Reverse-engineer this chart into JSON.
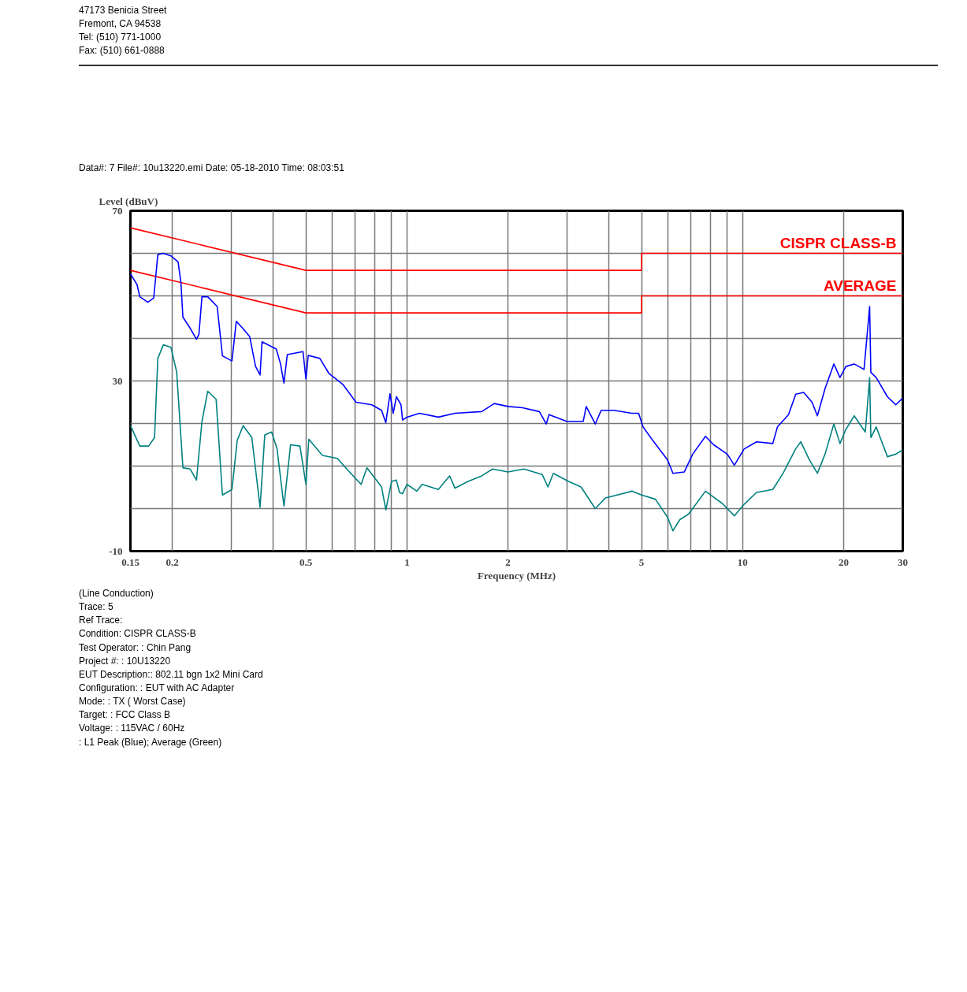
{
  "chart_data": {
    "type": "line",
    "subtitle": "Data#: 7     File#: 10u13220.emi     Date: 05-18-2010  Time: 08:03:51",
    "xlabel": "Frequency (MHz)",
    "ylabel": "Level (dBuV)",
    "log": "x",
    "grid": true,
    "line_style": "solid",
    "xlim": [
      0.15,
      30
    ],
    "ylim": [
      -10,
      70
    ],
    "xticks": [
      0.15,
      0.2,
      {
        "value": 0.3,
        "label": null
      },
      {
        "value": 0.4,
        "label": null
      },
      0.5,
      {
        "value": 0.6,
        "label": null
      },
      {
        "value": 0.7,
        "label": null
      },
      {
        "value": 0.8,
        "label": null
      },
      {
        "value": 0.9,
        "label": null
      },
      1,
      2,
      {
        "value": 3,
        "label": null
      },
      {
        "value": 4,
        "label": null
      },
      5,
      {
        "value": 6,
        "label": null
      },
      {
        "value": 7,
        "label": null
      },
      {
        "value": 8,
        "label": null
      },
      {
        "value": 9,
        "label": null
      },
      10,
      20,
      30
    ],
    "yticks": [
      -10,
      {
        "value": 0,
        "label": null
      },
      {
        "value": 10,
        "label": null
      },
      {
        "value": 20,
        "label": null
      },
      30,
      {
        "value": 40,
        "label": null
      },
      {
        "value": 50,
        "label": null
      },
      {
        "value": 60,
        "label": null
      },
      70
    ],
    "series": [
      {
        "name": "CISPR CLASS-B",
        "color": "#ff0000",
        "x": [
          0.15,
          0.5,
          5,
          5,
          30
        ],
        "values": [
          66,
          56,
          56,
          60,
          60
        ]
      },
      {
        "name": "AVERAGE",
        "color": "#ff0000",
        "x": [
          0.15,
          0.5,
          5,
          5,
          30
        ],
        "values": [
          56,
          46,
          46,
          50,
          50
        ]
      },
      {
        "color": "#0000ff",
        "x": [
          0.15,
          0.157,
          0.16,
          0.169,
          0.176,
          0.181,
          0.188,
          0.198,
          0.208,
          0.212,
          0.215,
          0.226,
          0.236,
          0.24,
          0.245,
          0.255,
          0.272,
          0.282,
          0.301,
          0.31,
          0.324,
          0.34,
          0.354,
          0.365,
          0.37,
          0.408,
          0.42,
          0.43,
          0.44,
          0.49,
          0.5,
          0.508,
          0.55,
          0.585,
          0.644,
          0.705,
          0.785,
          0.84,
          0.865,
          0.89,
          0.91,
          0.93,
          0.96,
          0.97,
          1.0,
          1.09,
          1.24,
          1.39,
          1.67,
          1.82,
          2.0,
          2.21,
          2.48,
          2.6,
          2.65,
          2.99,
          3.35,
          3.42,
          3.64,
          3.79,
          4.13,
          4.68,
          4.9,
          5.05,
          5.4,
          5.97,
          6.2,
          6.7,
          7.1,
          7.75,
          8.2,
          9.0,
          9.45,
          10.1,
          11.0,
          12.3,
          12.7,
          13.7,
          14.4,
          15.2,
          16.1,
          16.7,
          17.6,
          18.7,
          19.5,
          20.3,
          21.5,
          23.0,
          23.9,
          24.1,
          25.0,
          27.0,
          28.6,
          30
        ],
        "values": [
          55.2,
          52.6,
          49.8,
          48.5,
          49.5,
          59.7,
          60,
          59.4,
          58,
          53.3,
          45,
          42.4,
          39.8,
          41,
          49.8,
          49.8,
          47.5,
          35.9,
          34.7,
          44,
          42.4,
          40.4,
          33.4,
          31.4,
          39.2,
          37.5,
          34,
          29.5,
          36.2,
          36.9,
          30.5,
          36,
          35.3,
          31.8,
          29.2,
          25,
          24.4,
          23.1,
          20.2,
          27,
          22.4,
          26.3,
          24.4,
          20.8,
          21.5,
          22.4,
          21.5,
          22.4,
          22.8,
          24.7,
          24,
          23.7,
          22.8,
          19.9,
          22.1,
          20.5,
          20.5,
          24,
          19.9,
          23.1,
          23.1,
          22.4,
          22.4,
          19.2,
          16,
          11.5,
          8.3,
          8.6,
          12.8,
          17,
          15,
          12.8,
          10.2,
          14,
          15.7,
          15.3,
          19.2,
          22.1,
          26.9,
          27.3,
          25,
          21.8,
          28.2,
          34,
          30.8,
          33.4,
          34,
          32.7,
          47.5,
          32,
          30.8,
          26.3,
          24.4,
          26
        ]
      },
      {
        "color": "#008080",
        "x": [
          0.15,
          0.16,
          0.17,
          0.177,
          0.181,
          0.188,
          0.198,
          0.206,
          0.215,
          0.226,
          0.236,
          0.245,
          0.255,
          0.27,
          0.282,
          0.301,
          0.312,
          0.325,
          0.345,
          0.365,
          0.377,
          0.395,
          0.41,
          0.43,
          0.45,
          0.48,
          0.5,
          0.51,
          0.56,
          0.62,
          0.68,
          0.73,
          0.76,
          0.84,
          0.865,
          0.9,
          0.93,
          0.95,
          0.97,
          1.0,
          1.07,
          1.11,
          1.24,
          1.34,
          1.39,
          1.52,
          1.67,
          1.8,
          2.0,
          2.23,
          2.53,
          2.63,
          2.73,
          3.03,
          3.3,
          3.64,
          3.9,
          4.23,
          4.68,
          5.0,
          5.5,
          5.97,
          6.2,
          6.5,
          6.9,
          7.75,
          8.7,
          9.45,
          10.1,
          11.0,
          12.3,
          13.2,
          14.4,
          14.9,
          15.8,
          16.7,
          17.6,
          18.7,
          19.5,
          20.3,
          21.5,
          23.2,
          23.9,
          24.1,
          25.0,
          27.0,
          28.6,
          30
        ],
        "values": [
          19.5,
          14.7,
          14.7,
          16.7,
          35.3,
          38.5,
          37.9,
          32.1,
          9.6,
          9.3,
          6.7,
          20.5,
          27.6,
          25.7,
          3.2,
          4.5,
          16,
          19.5,
          16.7,
          0.3,
          17.3,
          18,
          14.1,
          0.6,
          15,
          14.7,
          5.7,
          16.3,
          12.5,
          11.8,
          8.3,
          5.7,
          9.6,
          5.1,
          -0.3,
          6.4,
          6.7,
          3.8,
          3.5,
          5.7,
          4.1,
          5.7,
          4.5,
          7.7,
          4.8,
          6.4,
          7.7,
          9.3,
          8.6,
          9.3,
          8,
          5.1,
          8.3,
          6.4,
          5.1,
          0,
          2.5,
          3.2,
          4.1,
          3.2,
          2.2,
          -2,
          -5.2,
          -2.6,
          -1.3,
          4.1,
          1.2,
          -1.7,
          1,
          3.8,
          4.5,
          8.3,
          14.1,
          15.7,
          11.5,
          8.3,
          12.8,
          19.9,
          15.3,
          18.6,
          21.8,
          18,
          30.8,
          16.7,
          19.2,
          12.2,
          12.8,
          13.8
        ]
      }
    ],
    "annotations": [
      "47173 Benicia Street",
      "Fremont, CA 94538",
      "Tel: (510) 771-1000",
      "Fax: (510) 661-0888",
      "(Line Conduction)",
      "Trace: 5",
      "Ref Trace:",
      "Condition: CISPR CLASS-B",
      "Test Operator:  : Chin Pang",
      "Project #:      : 10U13220",
      "EUT Description:: 802.11 bgn 1x2 Mini Card",
      "Configuration:  : EUT with AC Adapter",
      "Mode:           : TX  ( Worst Case)",
      "Target:         : FCC Class B",
      "Voltage:        : 115VAC / 60Hz",
      "                : L1 Peak (Blue); Average (Green)"
    ]
  }
}
